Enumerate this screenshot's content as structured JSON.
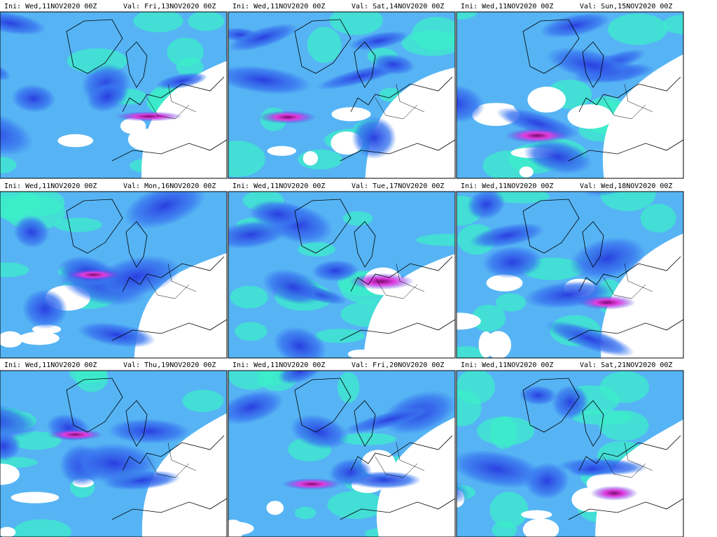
{
  "panels": [
    {
      "ini": "Ini: Wed,11NOV2020 00Z",
      "val": "Val: Fri,13NOV2020 00Z"
    },
    {
      "ini": "Ini: Wed,11NOV2020 00Z",
      "val": "Val: Sat,14NOV2020 00Z"
    },
    {
      "ini": "Ini: Wed,11NOV2020 00Z",
      "val": "Val: Sun,15NOV2020 00Z"
    },
    {
      "ini": "Ini: Wed,11NOV2020 00Z",
      "val": "Val: Mon,16NOV2020 00Z"
    },
    {
      "ini": "Ini: Wed,11NOV2020 00Z",
      "val": "Val: Tue,17NOV2020 00Z"
    },
    {
      "ini": "Ini: Wed,11NOV2020 00Z",
      "val": "Val: Wed,18NOV2020 00Z"
    },
    {
      "ini": "Ini: Wed,11NOV2020 00Z",
      "val": "Val: Thu,19NOV2020 00Z"
    },
    {
      "ini": "Ini: Wed,11NOV2020 00Z",
      "val": "Val: Fri,20NOV2020 00Z"
    },
    {
      "ini": "Ini: Wed,11NOV2020 00Z",
      "val": "Val: Sat,21NOV2020 00Z"
    }
  ]
}
